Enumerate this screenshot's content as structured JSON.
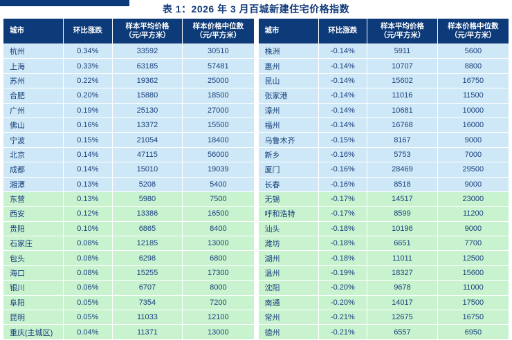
{
  "title": "表 1：2026 年 3 月百城新建住宅价格指数",
  "colors": {
    "header_bg": "#0d3a78",
    "title_color": "#123a7a",
    "row_blue": "#cfe8f7",
    "row_green": "#c9f2cf",
    "text_color": "#17407c"
  },
  "chart_data": {
    "type": "table",
    "title": "表 1：2026 年 3 月百城新建住宅价格指数",
    "columns": [
      {
        "line1": "城市",
        "line2": ""
      },
      {
        "line1": "环比涨跌",
        "line2": ""
      },
      {
        "line1": "样本平均价格",
        "line2": "（元/平方米）"
      },
      {
        "line1": "样本价格中位数",
        "line2": "（元/平方米）"
      }
    ],
    "tables": [
      {
        "name": "left",
        "rows": [
          [
            "杭州",
            "0.34%",
            "33592",
            "30510",
            "blue"
          ],
          [
            "上海",
            "0.33%",
            "63185",
            "57481",
            "blue"
          ],
          [
            "苏州",
            "0.22%",
            "19362",
            "25000",
            "blue"
          ],
          [
            "合肥",
            "0.20%",
            "15880",
            "18500",
            "blue"
          ],
          [
            "广州",
            "0.19%",
            "25130",
            "27000",
            "blue"
          ],
          [
            "佛山",
            "0.16%",
            "13372",
            "15500",
            "blue"
          ],
          [
            "宁波",
            "0.15%",
            "21054",
            "18400",
            "blue"
          ],
          [
            "北京",
            "0.14%",
            "47115",
            "56000",
            "blue"
          ],
          [
            "成都",
            "0.14%",
            "15010",
            "19039",
            "blue"
          ],
          [
            "湘潭",
            "0.13%",
            "5208",
            "5400",
            "blue"
          ],
          [
            "东营",
            "0.13%",
            "5980",
            "7500",
            "green"
          ],
          [
            "西安",
            "0.12%",
            "13386",
            "16500",
            "green"
          ],
          [
            "贵阳",
            "0.10%",
            "6865",
            "8400",
            "green"
          ],
          [
            "石家庄",
            "0.08%",
            "12185",
            "13000",
            "green"
          ],
          [
            "包头",
            "0.08%",
            "6298",
            "6800",
            "green"
          ],
          [
            "海口",
            "0.08%",
            "15255",
            "17300",
            "green"
          ],
          [
            "银川",
            "0.06%",
            "6707",
            "8000",
            "green"
          ],
          [
            "阜阳",
            "0.05%",
            "7354",
            "7200",
            "green"
          ],
          [
            "昆明",
            "0.05%",
            "11033",
            "12100",
            "green"
          ],
          [
            "重庆(主城区)",
            "0.04%",
            "11371",
            "13000",
            "green"
          ]
        ]
      },
      {
        "name": "right",
        "rows": [
          [
            "株洲",
            "-0.14%",
            "5911",
            "5600",
            "blue"
          ],
          [
            "惠州",
            "-0.14%",
            "10707",
            "8800",
            "blue"
          ],
          [
            "昆山",
            "-0.14%",
            "15602",
            "16750",
            "blue"
          ],
          [
            "张家港",
            "-0.14%",
            "11016",
            "11500",
            "blue"
          ],
          [
            "漳州",
            "-0.14%",
            "10681",
            "10000",
            "blue"
          ],
          [
            "福州",
            "-0.14%",
            "16768",
            "16000",
            "blue"
          ],
          [
            "乌鲁木齐",
            "-0.15%",
            "8167",
            "9000",
            "blue"
          ],
          [
            "新乡",
            "-0.16%",
            "5753",
            "7000",
            "blue"
          ],
          [
            "厦门",
            "-0.16%",
            "28469",
            "29500",
            "blue"
          ],
          [
            "长春",
            "-0.16%",
            "8518",
            "9000",
            "blue"
          ],
          [
            "无锡",
            "-0.17%",
            "14517",
            "23000",
            "green"
          ],
          [
            "呼和浩特",
            "-0.17%",
            "8599",
            "11200",
            "green"
          ],
          [
            "汕头",
            "-0.18%",
            "10196",
            "9000",
            "green"
          ],
          [
            "潍坊",
            "-0.18%",
            "6651",
            "7700",
            "green"
          ],
          [
            "湖州",
            "-0.18%",
            "11011",
            "12500",
            "green"
          ],
          [
            "温州",
            "-0.19%",
            "18327",
            "15600",
            "green"
          ],
          [
            "沈阳",
            "-0.20%",
            "9678",
            "11000",
            "green"
          ],
          [
            "南通",
            "-0.20%",
            "14017",
            "17500",
            "green"
          ],
          [
            "常州",
            "-0.21%",
            "12675",
            "16750",
            "green"
          ],
          [
            "德州",
            "-0.21%",
            "6557",
            "6950",
            "green"
          ]
        ]
      }
    ]
  }
}
